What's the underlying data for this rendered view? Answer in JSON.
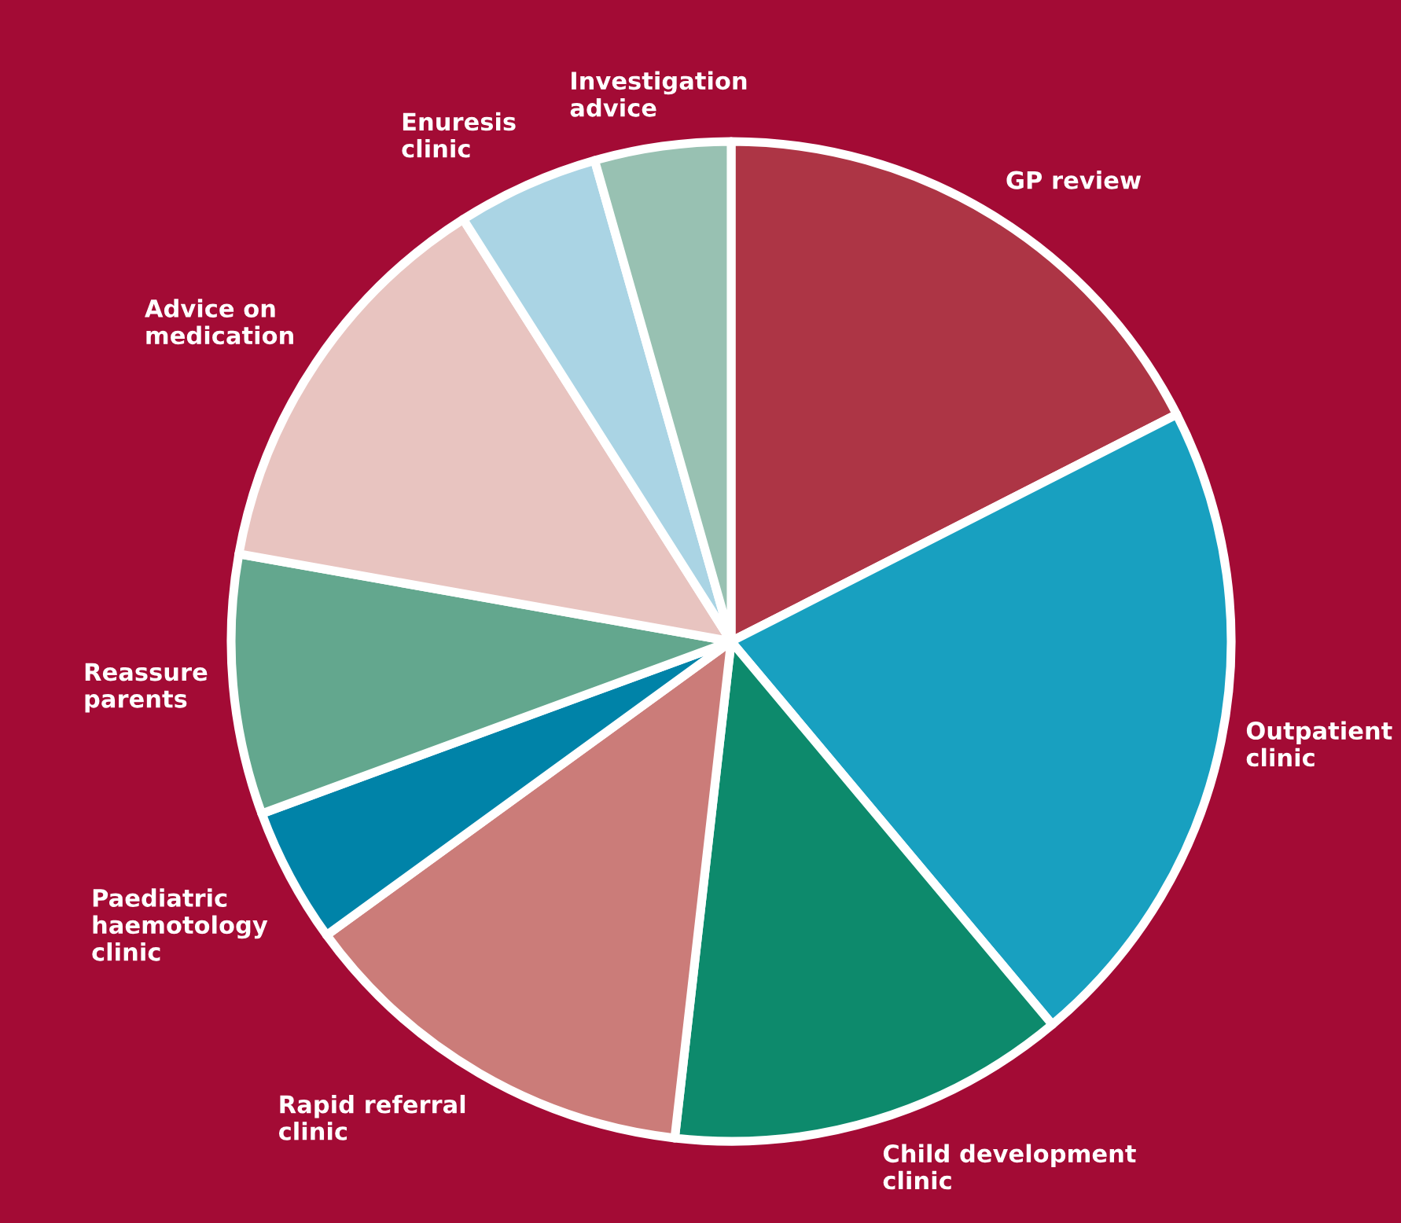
{
  "chart_data": {
    "type": "pie",
    "categories": [
      "GP review",
      "Outpatient\nclinic",
      "Child development\nclinic",
      "Rapid referral\nclinic",
      "Paediatric\nhaemotology\nclinic",
      "Reassure\nparents",
      "Advice on\nmedication",
      "Enuresis\nclinic",
      "Investigation\nadvice"
    ],
    "values": [
      17.5,
      21.4,
      12.9,
      13.2,
      4.4,
      8.4,
      13.2,
      4.6,
      4.4
    ],
    "colors": [
      "#ad3545",
      "#18a0c0",
      "#0d8a6c",
      "#cb7c79",
      "#0083a8",
      "#63a78e",
      "#e8c4c0",
      "#aad4e4",
      "#98c1b2"
    ]
  }
}
